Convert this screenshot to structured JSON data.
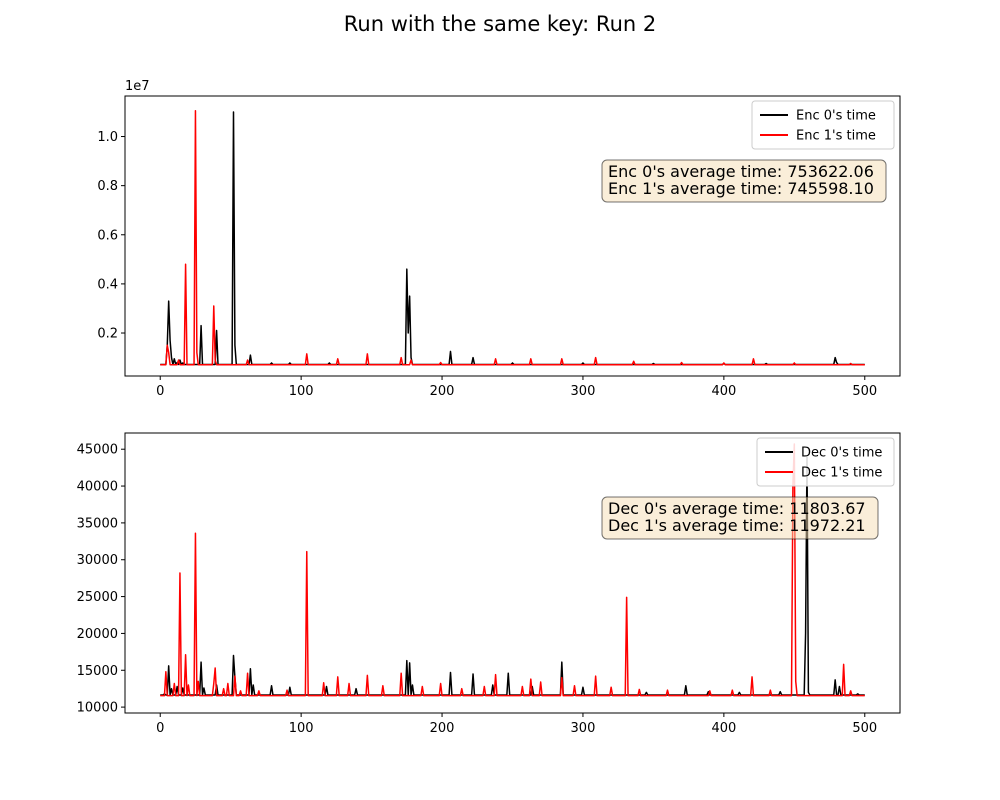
{
  "figure": {
    "title": "Run with the same key: Run 2"
  },
  "chart_data": [
    {
      "type": "line",
      "name": "encryption",
      "xlim": [
        -25,
        525
      ],
      "ylim": [
        250000,
        11650000
      ],
      "x_ticks": [
        0,
        100,
        200,
        300,
        400,
        500
      ],
      "x_tick_labels": [
        "0",
        "100",
        "200",
        "300",
        "400",
        "500"
      ],
      "y_ticks": [
        2000000,
        4000000,
        6000000,
        8000000,
        10000000
      ],
      "y_tick_labels": [
        "0.2",
        "0.4",
        "0.6",
        "0.8",
        "1.0"
      ],
      "offset_text": "1e7",
      "grid": false,
      "legend_position": "upper right",
      "legend": [
        "Enc 0's time",
        "Enc 1's time"
      ],
      "annotation": [
        "Enc 0's average time: 753622.06",
        "Enc 1's average time: 745598.10"
      ],
      "series": [
        {
          "name": "Enc 0's time",
          "color": "#000000",
          "base": 720000,
          "points": [
            [
              5,
              1500000
            ],
            [
              6,
              3300000
            ],
            [
              7,
              1700000
            ],
            [
              8,
              1000000
            ],
            [
              10,
              950000
            ],
            [
              12,
              800000
            ],
            [
              14,
              900000
            ],
            [
              16,
              780000
            ],
            [
              29,
              2300000
            ],
            [
              40,
              2100000
            ],
            [
              52,
              11000000
            ],
            [
              53,
              1500000
            ],
            [
              64,
              1100000
            ],
            [
              79,
              780000
            ],
            [
              92,
              780000
            ],
            [
              120,
              780000
            ],
            [
              175,
              4600000
            ],
            [
              176,
              2000000
            ],
            [
              177,
              3500000
            ],
            [
              178,
              1000000
            ],
            [
              206,
              1250000
            ],
            [
              222,
              1000000
            ],
            [
              250,
              780000
            ],
            [
              300,
              780000
            ],
            [
              350,
              760000
            ],
            [
              400,
              760000
            ],
            [
              430,
              760000
            ],
            [
              479,
              1000000
            ],
            [
              480,
              800000
            ]
          ]
        },
        {
          "name": "Enc 1's time",
          "color": "#ff0000",
          "base": 710000,
          "points": [
            [
              5,
              1500000
            ],
            [
              6,
              1200000
            ],
            [
              13,
              900000
            ],
            [
              18,
              4800000
            ],
            [
              25,
              11050000
            ],
            [
              26,
              1200000
            ],
            [
              38,
              3100000
            ],
            [
              39,
              900000
            ],
            [
              62,
              900000
            ],
            [
              104,
              1150000
            ],
            [
              126,
              950000
            ],
            [
              147,
              1150000
            ],
            [
              171,
              1000000
            ],
            [
              178,
              900000
            ],
            [
              199,
              800000
            ],
            [
              238,
              950000
            ],
            [
              263,
              950000
            ],
            [
              285,
              950000
            ],
            [
              309,
              1000000
            ],
            [
              336,
              850000
            ],
            [
              370,
              800000
            ],
            [
              400,
              780000
            ],
            [
              421,
              950000
            ],
            [
              450,
              780000
            ],
            [
              490,
              760000
            ]
          ]
        }
      ]
    },
    {
      "type": "line",
      "name": "decryption",
      "xlim": [
        -25,
        525
      ],
      "ylim": [
        9200,
        47200
      ],
      "x_ticks": [
        0,
        100,
        200,
        300,
        400,
        500
      ],
      "x_tick_labels": [
        "0",
        "100",
        "200",
        "300",
        "400",
        "500"
      ],
      "y_ticks": [
        10000,
        15000,
        20000,
        25000,
        30000,
        35000,
        40000,
        45000
      ],
      "y_tick_labels": [
        "10000",
        "15000",
        "20000",
        "25000",
        "30000",
        "35000",
        "40000",
        "45000"
      ],
      "grid": false,
      "legend_position": "upper right",
      "legend": [
        "Dec 0's time",
        "Dec 1's time"
      ],
      "annotation": [
        "Dec 0's average time: 11803.67",
        "Dec 1's average time: 11972.21"
      ],
      "series": [
        {
          "name": "Dec 0's time",
          "color": "#000000",
          "base": 11650,
          "points": [
            [
              3,
              11800
            ],
            [
              6,
              15600
            ],
            [
              8,
              12500
            ],
            [
              12,
              12800
            ],
            [
              16,
              12600
            ],
            [
              29,
              16100
            ],
            [
              31,
              12600
            ],
            [
              40,
              13000
            ],
            [
              52,
              17000
            ],
            [
              53,
              14000
            ],
            [
              64,
              15200
            ],
            [
              66,
              13000
            ],
            [
              79,
              12900
            ],
            [
              92,
              12700
            ],
            [
              118,
              12800
            ],
            [
              139,
              12500
            ],
            [
              175,
              16300
            ],
            [
              177,
              16000
            ],
            [
              179,
              13000
            ],
            [
              206,
              14700
            ],
            [
              222,
              14500
            ],
            [
              236,
              13000
            ],
            [
              247,
              14600
            ],
            [
              264,
              12800
            ],
            [
              285,
              16100
            ],
            [
              300,
              12700
            ],
            [
              345,
              12000
            ],
            [
              373,
              12900
            ],
            [
              389,
              12100
            ],
            [
              411,
              12000
            ],
            [
              440,
              12100
            ],
            [
              458,
              20000
            ],
            [
              459,
              44000
            ],
            [
              460,
              12000
            ],
            [
              479,
              13700
            ],
            [
              482,
              12800
            ],
            [
              495,
              11800
            ]
          ]
        },
        {
          "name": "Dec 1's time",
          "color": "#ff0000",
          "base": 11550,
          "points": [
            [
              4,
              14800
            ],
            [
              10,
              13200
            ],
            [
              14,
              28200
            ],
            [
              18,
              17100
            ],
            [
              20,
              13000
            ],
            [
              25,
              33600
            ],
            [
              27,
              13500
            ],
            [
              38,
              13200
            ],
            [
              39,
              15300
            ],
            [
              45,
              12500
            ],
            [
              48,
              13200
            ],
            [
              53,
              14200
            ],
            [
              57,
              12200
            ],
            [
              62,
              14600
            ],
            [
              70,
              12200
            ],
            [
              90,
              12300
            ],
            [
              104,
              31100
            ],
            [
              116,
              13300
            ],
            [
              126,
              14100
            ],
            [
              134,
              13200
            ],
            [
              147,
              14300
            ],
            [
              158,
              12900
            ],
            [
              171,
              14600
            ],
            [
              186,
              12800
            ],
            [
              199,
              13200
            ],
            [
              214,
              12500
            ],
            [
              230,
              12800
            ],
            [
              238,
              14400
            ],
            [
              257,
              12800
            ],
            [
              263,
              13800
            ],
            [
              270,
              13400
            ],
            [
              285,
              14000
            ],
            [
              294,
              12900
            ],
            [
              309,
              14200
            ],
            [
              320,
              12700
            ],
            [
              331,
              24900
            ],
            [
              340,
              12400
            ],
            [
              360,
              12300
            ],
            [
              390,
              12200
            ],
            [
              406,
              12300
            ],
            [
              420,
              14100
            ],
            [
              433,
              12300
            ],
            [
              449,
              40100
            ],
            [
              450,
              45700
            ],
            [
              451,
              13500
            ],
            [
              485,
              15800
            ],
            [
              490,
              12200
            ]
          ]
        }
      ]
    }
  ]
}
